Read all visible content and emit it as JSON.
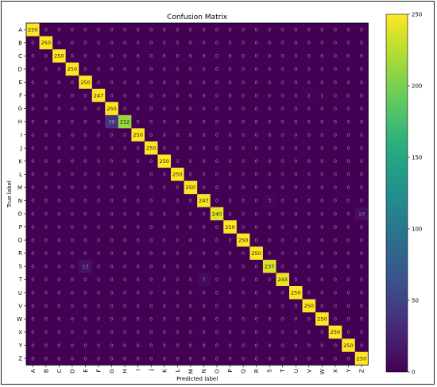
{
  "chart_data": {
    "type": "heatmap",
    "title": "Confusion Matrix",
    "xlabel": "Predicted label",
    "ylabel": "True label",
    "labels": [
      "A",
      "B",
      "C",
      "D",
      "E",
      "F",
      "G",
      "H",
      "I",
      "J",
      "K",
      "L",
      "M",
      "N",
      "O",
      "P",
      "Q",
      "R",
      "S",
      "T",
      "U",
      "V",
      "W",
      "X",
      "Y",
      "Z"
    ],
    "colormap": "viridis",
    "colorbar": {
      "min": 0,
      "max": 250,
      "ticks": [
        0,
        50,
        100,
        150,
        200,
        250
      ]
    },
    "matrix": [
      [
        250,
        0,
        0,
        0,
        0,
        0,
        0,
        0,
        0,
        0,
        0,
        0,
        0,
        0,
        0,
        0,
        0,
        0,
        0,
        0,
        0,
        0,
        0,
        0,
        0,
        0
      ],
      [
        0,
        250,
        0,
        0,
        0,
        0,
        0,
        0,
        0,
        0,
        0,
        0,
        0,
        0,
        0,
        0,
        0,
        0,
        0,
        0,
        0,
        0,
        0,
        0,
        0,
        0
      ],
      [
        0,
        0,
        250,
        0,
        0,
        0,
        0,
        0,
        0,
        0,
        0,
        0,
        0,
        0,
        0,
        0,
        0,
        0,
        0,
        0,
        0,
        0,
        0,
        0,
        0,
        0
      ],
      [
        0,
        0,
        0,
        250,
        0,
        0,
        0,
        0,
        0,
        0,
        0,
        0,
        0,
        0,
        0,
        0,
        0,
        0,
        0,
        0,
        0,
        0,
        0,
        0,
        0,
        0
      ],
      [
        0,
        0,
        0,
        0,
        250,
        0,
        0,
        0,
        0,
        0,
        0,
        0,
        0,
        0,
        0,
        0,
        0,
        0,
        0,
        0,
        0,
        0,
        0,
        0,
        0,
        0
      ],
      [
        0,
        0,
        0,
        0,
        0,
        247,
        0,
        0,
        0,
        0,
        0,
        0,
        0,
        0,
        0,
        0,
        0,
        0,
        0,
        0,
        0,
        2,
        1,
        0,
        0,
        0
      ],
      [
        0,
        0,
        0,
        0,
        0,
        0,
        250,
        0,
        0,
        0,
        0,
        0,
        0,
        0,
        0,
        0,
        0,
        0,
        0,
        0,
        0,
        0,
        0,
        0,
        0,
        0
      ],
      [
        0,
        0,
        0,
        0,
        0,
        0,
        38,
        212,
        0,
        0,
        0,
        0,
        0,
        0,
        0,
        0,
        0,
        0,
        0,
        0,
        0,
        0,
        0,
        0,
        0,
        0
      ],
      [
        0,
        0,
        0,
        0,
        0,
        0,
        0,
        0,
        250,
        0,
        0,
        0,
        0,
        0,
        0,
        0,
        0,
        0,
        0,
        0,
        0,
        0,
        0,
        0,
        0,
        0
      ],
      [
        0,
        0,
        0,
        0,
        0,
        0,
        0,
        0,
        0,
        250,
        0,
        0,
        0,
        0,
        0,
        0,
        0,
        0,
        0,
        0,
        0,
        0,
        0,
        0,
        0,
        0
      ],
      [
        0,
        0,
        0,
        0,
        0,
        0,
        0,
        0,
        0,
        0,
        250,
        0,
        0,
        0,
        0,
        0,
        0,
        0,
        0,
        0,
        0,
        0,
        0,
        0,
        0,
        0
      ],
      [
        0,
        0,
        0,
        0,
        0,
        0,
        0,
        0,
        0,
        0,
        0,
        250,
        0,
        0,
        0,
        0,
        0,
        0,
        0,
        0,
        0,
        0,
        0,
        0,
        0,
        0
      ],
      [
        0,
        0,
        0,
        0,
        0,
        0,
        0,
        0,
        0,
        0,
        0,
        0,
        250,
        0,
        0,
        0,
        0,
        0,
        0,
        0,
        0,
        0,
        0,
        0,
        0,
        0
      ],
      [
        0,
        0,
        0,
        0,
        0,
        0,
        0,
        0,
        0,
        0,
        0,
        0,
        0,
        247,
        0,
        0,
        0,
        0,
        3,
        0,
        0,
        0,
        0,
        0,
        0,
        0
      ],
      [
        0,
        0,
        0,
        0,
        0,
        0,
        0,
        0,
        0,
        0,
        0,
        0,
        0,
        0,
        240,
        0,
        0,
        0,
        0,
        0,
        0,
        0,
        0,
        0,
        0,
        10
      ],
      [
        0,
        0,
        0,
        0,
        0,
        0,
        0,
        0,
        0,
        0,
        0,
        0,
        0,
        0,
        0,
        250,
        0,
        0,
        0,
        0,
        0,
        0,
        0,
        0,
        0,
        0
      ],
      [
        0,
        0,
        0,
        0,
        0,
        0,
        0,
        0,
        0,
        0,
        0,
        0,
        0,
        0,
        0,
        0,
        250,
        0,
        0,
        0,
        0,
        0,
        0,
        0,
        0,
        0
      ],
      [
        0,
        0,
        0,
        0,
        0,
        0,
        0,
        0,
        0,
        0,
        0,
        0,
        0,
        0,
        0,
        0,
        0,
        250,
        0,
        0,
        0,
        0,
        0,
        0,
        0,
        0
      ],
      [
        0,
        0,
        0,
        0,
        13,
        0,
        0,
        0,
        0,
        0,
        0,
        0,
        0,
        0,
        0,
        0,
        0,
        0,
        237,
        0,
        0,
        0,
        0,
        0,
        0,
        0
      ],
      [
        0,
        0,
        0,
        0,
        0,
        0,
        0,
        0,
        0,
        0,
        0,
        0,
        0,
        7,
        0,
        0,
        0,
        0,
        0,
        243,
        0,
        0,
        0,
        0,
        0,
        0
      ],
      [
        0,
        0,
        0,
        0,
        0,
        0,
        0,
        0,
        0,
        0,
        0,
        0,
        0,
        0,
        0,
        0,
        0,
        0,
        0,
        0,
        250,
        0,
        0,
        0,
        0,
        0
      ],
      [
        0,
        0,
        0,
        0,
        0,
        0,
        0,
        0,
        0,
        0,
        0,
        0,
        0,
        0,
        0,
        0,
        0,
        0,
        0,
        0,
        0,
        250,
        0,
        0,
        0,
        0
      ],
      [
        0,
        0,
        0,
        0,
        0,
        0,
        0,
        0,
        0,
        0,
        0,
        0,
        0,
        0,
        0,
        0,
        0,
        0,
        0,
        0,
        0,
        0,
        250,
        0,
        0,
        0
      ],
      [
        0,
        0,
        0,
        0,
        0,
        0,
        0,
        0,
        0,
        0,
        0,
        0,
        0,
        0,
        0,
        0,
        0,
        0,
        0,
        0,
        0,
        0,
        0,
        250,
        0,
        0
      ],
      [
        0,
        0,
        0,
        0,
        0,
        0,
        0,
        0,
        0,
        0,
        0,
        0,
        0,
        0,
        0,
        0,
        0,
        0,
        0,
        0,
        0,
        0,
        0,
        0,
        250,
        0
      ],
      [
        0,
        0,
        0,
        0,
        0,
        0,
        0,
        0,
        0,
        0,
        0,
        0,
        0,
        0,
        0,
        0,
        0,
        0,
        0,
        0,
        0,
        0,
        0,
        0,
        0,
        250
      ]
    ]
  }
}
